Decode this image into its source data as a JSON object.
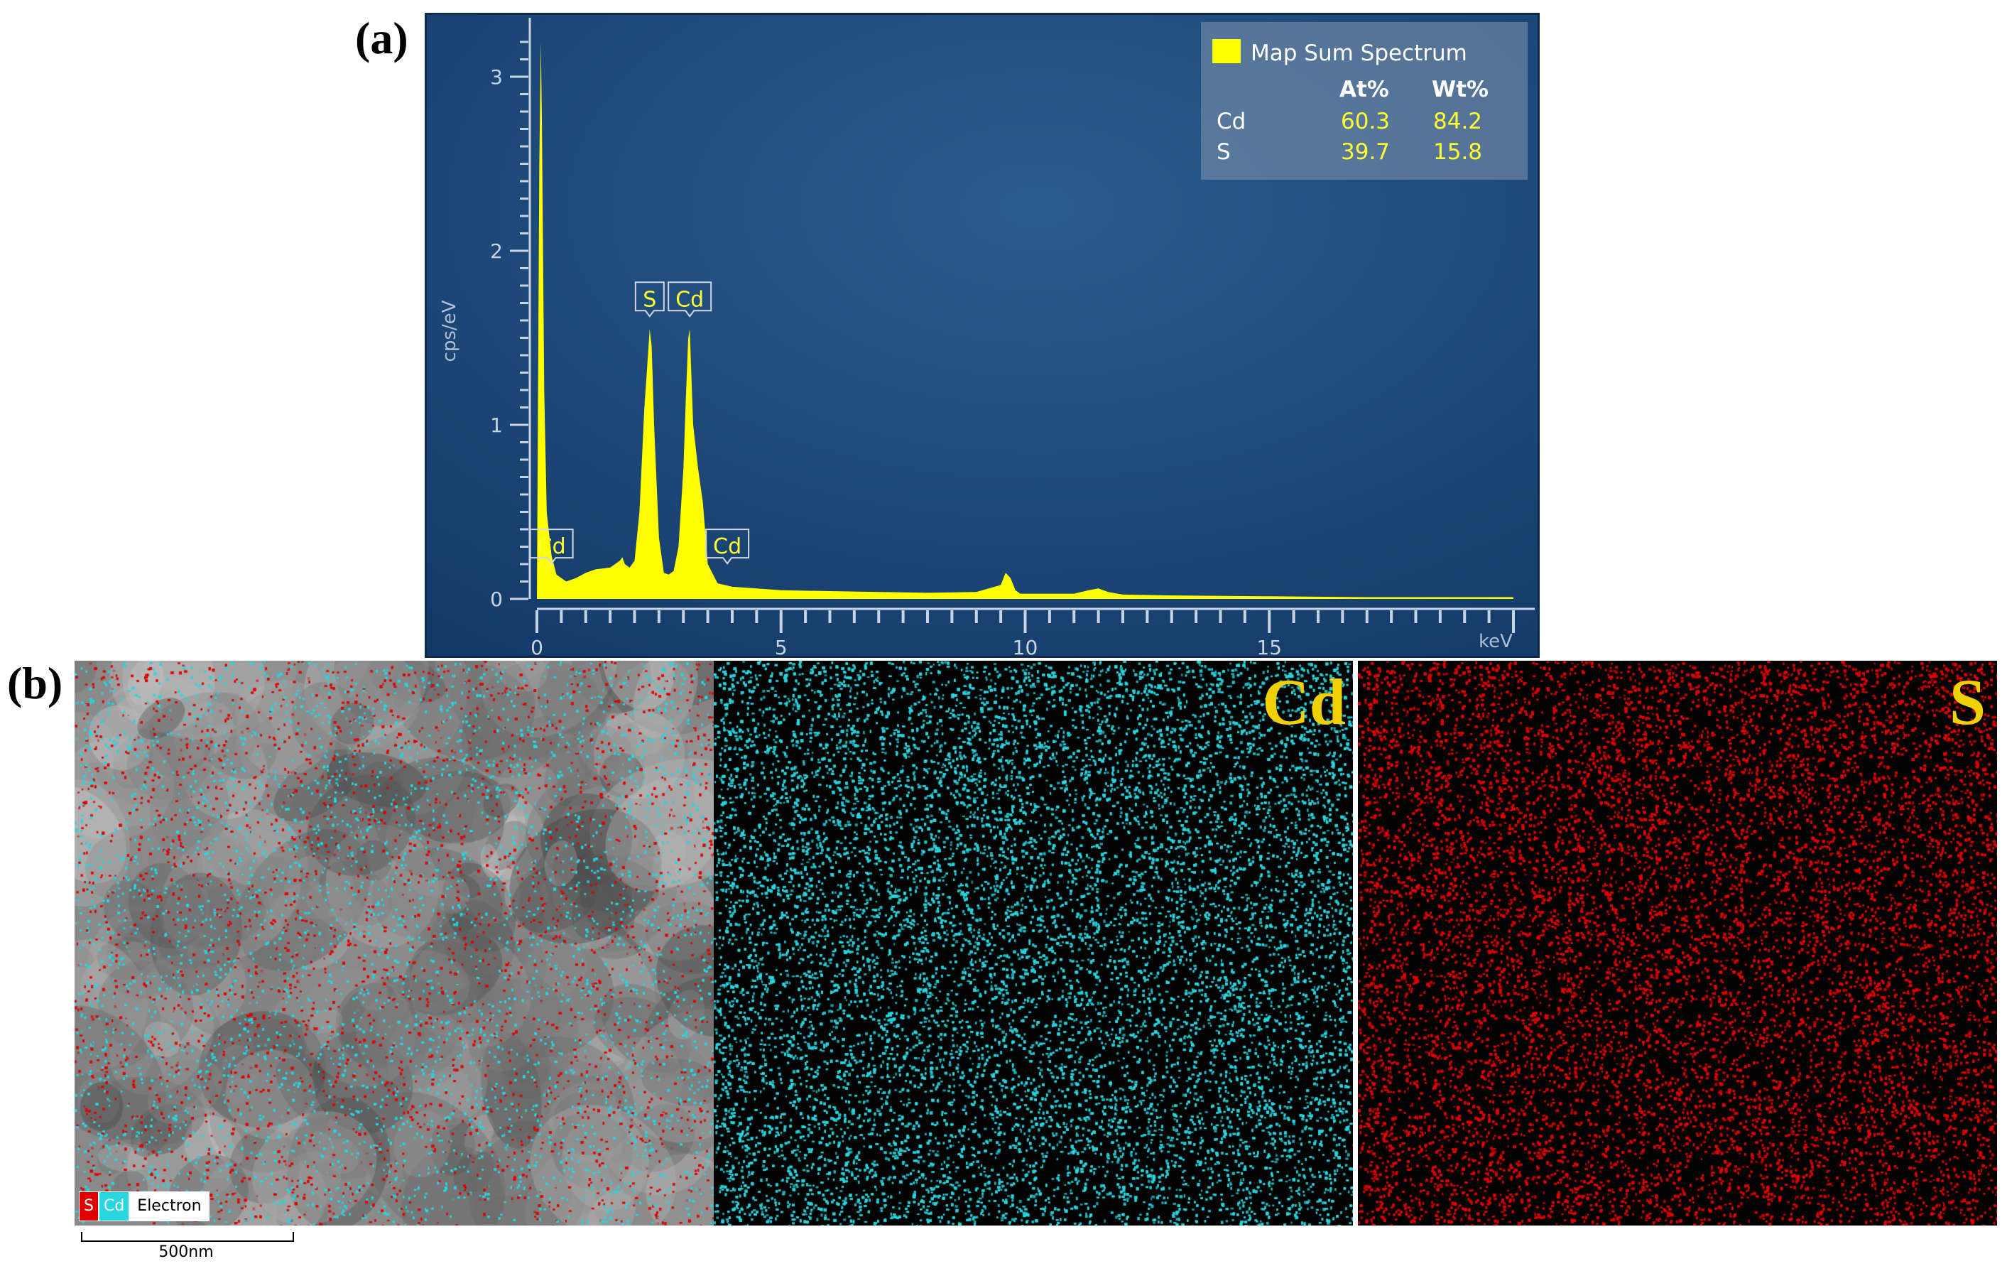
{
  "panels": {
    "a": "(a)",
    "b": "(b)"
  },
  "colors": {
    "spectrum": "#ffff00",
    "cd_map": "#29d6e0",
    "s_map": "#e00000",
    "plot_bg": "#1d4a78"
  },
  "legend": {
    "title": "Map Sum Spectrum",
    "headers": [
      "At%",
      "Wt%"
    ],
    "rows": [
      {
        "element": "Cd",
        "at": "60.3",
        "wt": "84.2"
      },
      {
        "element": "S",
        "at": "39.7",
        "wt": "15.8"
      }
    ]
  },
  "maps": {
    "cd_title": "Cd",
    "s_title": "S",
    "legend_s": "S",
    "legend_cd": "Cd",
    "legend_electron": "Electron",
    "scale": "500nm"
  },
  "chart_data": {
    "type": "area",
    "title": "",
    "xlabel": "keV",
    "ylabel": "cps/eV",
    "xlim": [
      0,
      20
    ],
    "ylim": [
      0,
      3.2
    ],
    "xticks": [
      0,
      5,
      10,
      15
    ],
    "yticks": [
      0,
      1,
      2,
      3
    ],
    "grid": false,
    "legend": "top-right",
    "series": [
      {
        "name": "Map Sum Spectrum",
        "x": [
          0.0,
          0.05,
          0.08,
          0.1,
          0.15,
          0.2,
          0.3,
          0.4,
          0.6,
          0.8,
          1.0,
          1.2,
          1.5,
          1.7,
          1.75,
          1.8,
          1.9,
          2.0,
          2.1,
          2.2,
          2.25,
          2.31,
          2.35,
          2.4,
          2.5,
          2.6,
          2.7,
          2.8,
          2.9,
          3.0,
          3.05,
          3.1,
          3.13,
          3.2,
          3.3,
          3.4,
          3.5,
          3.7,
          4.0,
          4.5,
          5.0,
          6.0,
          7.0,
          8.0,
          9.0,
          9.5,
          9.6,
          9.7,
          9.8,
          9.9,
          10.0,
          11.0,
          11.3,
          11.5,
          11.7,
          12.0,
          13.0,
          15.0,
          17.0,
          20.0
        ],
        "y": [
          0.0,
          2.5,
          3.2,
          2.8,
          1.2,
          0.5,
          0.25,
          0.14,
          0.1,
          0.12,
          0.15,
          0.17,
          0.18,
          0.22,
          0.24,
          0.2,
          0.18,
          0.22,
          0.5,
          1.1,
          1.3,
          1.55,
          1.45,
          1.0,
          0.35,
          0.15,
          0.14,
          0.16,
          0.3,
          0.75,
          1.15,
          1.5,
          1.55,
          1.0,
          0.75,
          0.55,
          0.2,
          0.09,
          0.07,
          0.06,
          0.05,
          0.045,
          0.04,
          0.035,
          0.04,
          0.08,
          0.15,
          0.12,
          0.05,
          0.03,
          0.03,
          0.03,
          0.05,
          0.06,
          0.04,
          0.025,
          0.02,
          0.015,
          0.01,
          0.01
        ]
      }
    ],
    "peak_labels": [
      {
        "label": "Cd",
        "x": 0.3,
        "y": 0.13
      },
      {
        "label": "S",
        "x": 2.31,
        "y": 1.55
      },
      {
        "label": "Cd",
        "x": 3.13,
        "y": 1.55
      },
      {
        "label": "Cd",
        "x": 3.9,
        "y": 0.13
      }
    ]
  }
}
